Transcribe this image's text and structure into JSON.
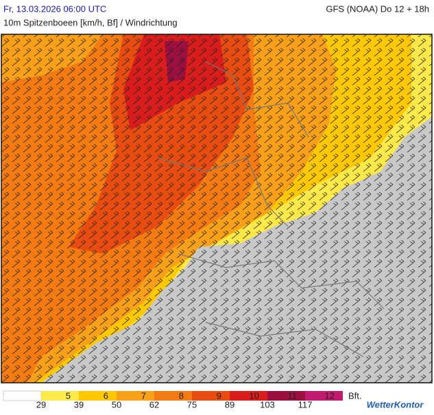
{
  "header": {
    "date": "Fr, 13.03.2026 06:00 UTC",
    "model": "GFS (NOAA) Do 12 + 18h",
    "subtitle": "10m Spitzenboeen [km/h, Bf] / Windrichtung"
  },
  "legend": {
    "bft": [
      {
        "label": "5",
        "color": "#ffe84a"
      },
      {
        "label": "6",
        "color": "#ffc800"
      },
      {
        "label": "7",
        "color": "#f9a01a"
      },
      {
        "label": "8",
        "color": "#f47b12"
      },
      {
        "label": "9",
        "color": "#e84c10"
      },
      {
        "label": "10",
        "color": "#d91c1c"
      },
      {
        "label": "11",
        "color": "#9c1040"
      },
      {
        "label": "12",
        "color": "#c01b6f"
      }
    ],
    "kmh": [
      "29",
      "39",
      "50",
      "62",
      "75",
      "89",
      "103",
      "117"
    ],
    "unit": "Bft.",
    "brand": "WetterKontor"
  }
}
